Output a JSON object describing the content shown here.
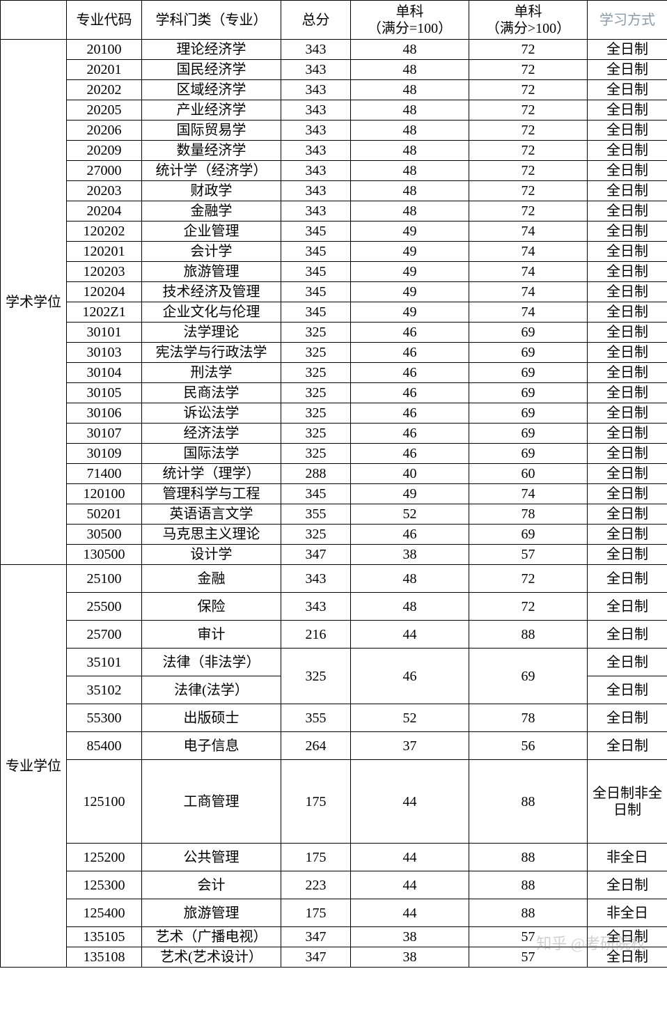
{
  "table": {
    "header": {
      "category": "",
      "code": "专业代码",
      "subject": "学科门类（专业）",
      "total": "总分",
      "single100": "单科\n（满分=100）",
      "singlegt100": "单科\n（满分>100）",
      "mode": "学习方式"
    },
    "sections": [
      {
        "category_label": "学术学位",
        "rows": [
          {
            "code": "20100",
            "subject": "理论经济学",
            "total": "343",
            "s100": "48",
            "sgt100": "72",
            "mode": "全日制"
          },
          {
            "code": "20201",
            "subject": "国民经济学",
            "total": "343",
            "s100": "48",
            "sgt100": "72",
            "mode": "全日制"
          },
          {
            "code": "20202",
            "subject": "区域经济学",
            "total": "343",
            "s100": "48",
            "sgt100": "72",
            "mode": "全日制"
          },
          {
            "code": "20205",
            "subject": "产业经济学",
            "total": "343",
            "s100": "48",
            "sgt100": "72",
            "mode": "全日制"
          },
          {
            "code": "20206",
            "subject": "国际贸易学",
            "total": "343",
            "s100": "48",
            "sgt100": "72",
            "mode": "全日制"
          },
          {
            "code": "20209",
            "subject": "数量经济学",
            "total": "343",
            "s100": "48",
            "sgt100": "72",
            "mode": "全日制"
          },
          {
            "code": "27000",
            "subject": "统计学（经济学）",
            "total": "343",
            "s100": "48",
            "sgt100": "72",
            "mode": "全日制"
          },
          {
            "code": "20203",
            "subject": "财政学",
            "total": "343",
            "s100": "48",
            "sgt100": "72",
            "mode": "全日制"
          },
          {
            "code": "20204",
            "subject": "金融学",
            "total": "343",
            "s100": "48",
            "sgt100": "72",
            "mode": "全日制"
          },
          {
            "code": "120202",
            "subject": "企业管理",
            "total": "345",
            "s100": "49",
            "sgt100": "74",
            "mode": "全日制"
          },
          {
            "code": "120201",
            "subject": "会计学",
            "total": "345",
            "s100": "49",
            "sgt100": "74",
            "mode": "全日制"
          },
          {
            "code": "120203",
            "subject": "旅游管理",
            "total": "345",
            "s100": "49",
            "sgt100": "74",
            "mode": "全日制"
          },
          {
            "code": "120204",
            "subject": "技术经济及管理",
            "total": "345",
            "s100": "49",
            "sgt100": "74",
            "mode": "全日制"
          },
          {
            "code": "1202Z1",
            "subject": "企业文化与伦理",
            "total": "345",
            "s100": "49",
            "sgt100": "74",
            "mode": "全日制"
          },
          {
            "code": "30101",
            "subject": "法学理论",
            "total": "325",
            "s100": "46",
            "sgt100": "69",
            "mode": "全日制"
          },
          {
            "code": "30103",
            "subject": "宪法学与行政法学",
            "total": "325",
            "s100": "46",
            "sgt100": "69",
            "mode": "全日制"
          },
          {
            "code": "30104",
            "subject": "刑法学",
            "total": "325",
            "s100": "46",
            "sgt100": "69",
            "mode": "全日制"
          },
          {
            "code": "30105",
            "subject": "民商法学",
            "total": "325",
            "s100": "46",
            "sgt100": "69",
            "mode": "全日制"
          },
          {
            "code": "30106",
            "subject": "诉讼法学",
            "total": "325",
            "s100": "46",
            "sgt100": "69",
            "mode": "全日制"
          },
          {
            "code": "30107",
            "subject": "经济法学",
            "total": "325",
            "s100": "46",
            "sgt100": "69",
            "mode": "全日制"
          },
          {
            "code": "30109",
            "subject": "国际法学",
            "total": "325",
            "s100": "46",
            "sgt100": "69",
            "mode": "全日制"
          },
          {
            "code": "71400",
            "subject": "统计学（理学）",
            "total": "288",
            "s100": "40",
            "sgt100": "60",
            "mode": "全日制"
          },
          {
            "code": "120100",
            "subject": "管理科学与工程",
            "total": "345",
            "s100": "49",
            "sgt100": "74",
            "mode": "全日制"
          },
          {
            "code": "50201",
            "subject": "英语语言文学",
            "total": "355",
            "s100": "52",
            "sgt100": "78",
            "mode": "全日制"
          },
          {
            "code": "30500",
            "subject": "马克思主义理论",
            "total": "325",
            "s100": "46",
            "sgt100": "69",
            "mode": "全日制"
          },
          {
            "code": "130500",
            "subject": "设计学",
            "total": "347",
            "s100": "38",
            "sgt100": "57",
            "mode": "全日制"
          }
        ]
      },
      {
        "category_label": "专业学位",
        "rows": [
          {
            "code": "25100",
            "subject": "金融",
            "total": "343",
            "s100": "48",
            "sgt100": "72",
            "mode": "全日制",
            "tall": true
          },
          {
            "code": "25500",
            "subject": "保险",
            "total": "343",
            "s100": "48",
            "sgt100": "72",
            "mode": "全日制",
            "tall": true
          },
          {
            "code": "25700",
            "subject": "审计",
            "total": "216",
            "s100": "44",
            "sgt100": "88",
            "mode": "全日制",
            "tall": true
          },
          {
            "code": "35101",
            "subject": "法律（非法学）",
            "total": "325",
            "s100": "46",
            "sgt100": "69",
            "mode": "全日制",
            "tall": true,
            "merge_start": true,
            "merge_rows": 2
          },
          {
            "code": "35102",
            "subject": "法律(法学）",
            "mode": "全日制",
            "tall": true,
            "merge_continue": true
          },
          {
            "code": "55300",
            "subject": "出版硕士",
            "total": "355",
            "s100": "52",
            "sgt100": "78",
            "mode": "全日制",
            "tall": true
          },
          {
            "code": "85400",
            "subject": "电子信息",
            "total": "264",
            "s100": "37",
            "sgt100": "56",
            "mode": "全日制",
            "tall": true
          },
          {
            "code": "125100",
            "subject": "工商管理",
            "total": "175",
            "s100": "44",
            "sgt100": "88",
            "mode": "全日制非全日制",
            "extra_tall": true
          },
          {
            "code": "125200",
            "subject": "公共管理",
            "total": "175",
            "s100": "44",
            "sgt100": "88",
            "mode": "非全日",
            "tall": true
          },
          {
            "code": "125300",
            "subject": "会计",
            "total": "223",
            "s100": "44",
            "sgt100": "88",
            "mode": "全日制",
            "tall": true
          },
          {
            "code": "125400",
            "subject": "旅游管理",
            "total": "175",
            "s100": "44",
            "sgt100": "88",
            "mode": "非全日",
            "tall": true
          },
          {
            "code": "135105",
            "subject": "艺术（广播电视）",
            "total": "347",
            "s100": "38",
            "sgt100": "57",
            "mode": "全日制"
          },
          {
            "code": "135108",
            "subject": "艺术(艺术设计）",
            "total": "347",
            "s100": "38",
            "sgt100": "57",
            "mode": "全日制"
          }
        ]
      }
    ]
  },
  "watermark": "知乎 @考研院校",
  "colors": {
    "border": "#000000",
    "text": "#000000",
    "mode_header": "#8a9ba8",
    "background": "#ffffff"
  }
}
